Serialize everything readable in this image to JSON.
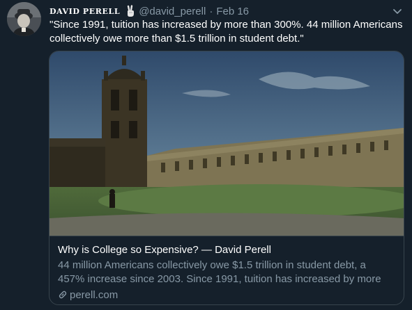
{
  "tweet": {
    "author_name": "DAVID PERELL",
    "author_handle": "@david_perell",
    "separator": "·",
    "date": "Feb 16",
    "text": "\"Since 1991, tuition has increased by more than 300%. 44 million Americans collectively owe more than $1.5 trillion in student debt.\""
  },
  "card": {
    "title": "Why is College so Expensive? — David Perell",
    "description": "44 million Americans collectively owe $1.5 trillion in student debt, a 457% increase since 2003.  Since 1991, tuition has increased by more than ...",
    "domain": "perell.com"
  },
  "colors": {
    "background": "#15202b",
    "secondary_text": "#8899a6",
    "border": "#38444d"
  },
  "icons": [
    "avatar",
    "victory-hand-icon",
    "chevron-down-icon",
    "link-icon"
  ]
}
